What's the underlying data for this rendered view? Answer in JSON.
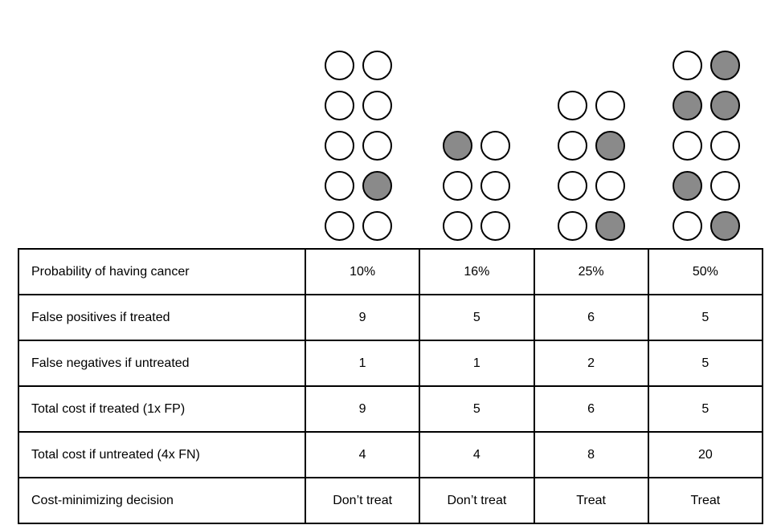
{
  "colors": {
    "background": "#ffffff",
    "dot_empty_fill": "#ffffff",
    "dot_filled_fill": "#8a8a8a",
    "dot_stroke": "#000000",
    "table_border": "#000000",
    "text": "#000000"
  },
  "pictograph": {
    "groups": [
      {
        "column": "10%",
        "total_circles": 10,
        "filled_circles": 1,
        "grid_rows": [
          [
            0,
            0
          ],
          [
            0,
            0
          ],
          [
            0,
            0
          ],
          [
            0,
            1
          ],
          [
            0,
            0
          ]
        ]
      },
      {
        "column": "16%",
        "total_circles": 6,
        "filled_circles": 1,
        "grid_rows": [
          [
            1,
            0
          ],
          [
            0,
            0
          ],
          [
            0,
            0
          ]
        ]
      },
      {
        "column": "25%",
        "total_circles": 8,
        "filled_circles": 2,
        "grid_rows": [
          [
            0,
            0
          ],
          [
            0,
            1
          ],
          [
            0,
            0
          ],
          [
            0,
            1
          ]
        ]
      },
      {
        "column": "50%",
        "total_circles": 10,
        "filled_circles": 5,
        "grid_rows": [
          [
            0,
            1
          ],
          [
            1,
            1
          ],
          [
            0,
            0
          ],
          [
            1,
            0
          ],
          [
            0,
            1
          ]
        ]
      }
    ]
  },
  "table": {
    "rows": [
      {
        "label": "Probability of having cancer",
        "values": [
          "10%",
          "16%",
          "25%",
          "50%"
        ]
      },
      {
        "label": "False positives if treated",
        "values": [
          "9",
          "5",
          "6",
          "5"
        ]
      },
      {
        "label": "False negatives if untreated",
        "values": [
          "1",
          "1",
          "2",
          "5"
        ]
      },
      {
        "label": "Total cost if treated (1x FP)",
        "values": [
          "9",
          "5",
          "6",
          "5"
        ]
      },
      {
        "label": "Total cost if untreated (4x FN)",
        "values": [
          "4",
          "4",
          "8",
          "20"
        ]
      },
      {
        "label": "Cost-minimizing decision",
        "values": [
          "Don’t treat",
          "Don’t treat",
          "Treat",
          "Treat"
        ]
      }
    ]
  },
  "chart_data": {
    "type": "table",
    "title": "",
    "columns": [
      "10%",
      "16%",
      "25%",
      "50%"
    ],
    "rows": [
      {
        "label": "Probability of having cancer",
        "values": [
          "10%",
          "16%",
          "25%",
          "50%"
        ]
      },
      {
        "label": "False positives if treated",
        "values": [
          9,
          5,
          6,
          5
        ]
      },
      {
        "label": "False negatives if untreated",
        "values": [
          1,
          1,
          2,
          5
        ]
      },
      {
        "label": "Total cost if treated (1x FP)",
        "values": [
          9,
          5,
          6,
          5
        ]
      },
      {
        "label": "Total cost if untreated (4x FN)",
        "values": [
          4,
          4,
          8,
          20
        ]
      },
      {
        "label": "Cost-minimizing decision",
        "values": [
          "Don’t treat",
          "Don’t treat",
          "Treat",
          "Treat"
        ]
      }
    ],
    "pictograph": {
      "layout": "four bottom-aligned 2-wide columns of circles, one above each data column; gray-filled circles mark cancer cases",
      "groups": [
        {
          "column": "10%",
          "total_circles": 10,
          "filled_circles": 1,
          "grid_rows": [
            [
              0,
              0
            ],
            [
              0,
              0
            ],
            [
              0,
              0
            ],
            [
              0,
              1
            ],
            [
              0,
              0
            ]
          ]
        },
        {
          "column": "16%",
          "total_circles": 6,
          "filled_circles": 1,
          "grid_rows": [
            [
              1,
              0
            ],
            [
              0,
              0
            ],
            [
              0,
              0
            ]
          ]
        },
        {
          "column": "25%",
          "total_circles": 8,
          "filled_circles": 2,
          "grid_rows": [
            [
              0,
              0
            ],
            [
              0,
              1
            ],
            [
              0,
              0
            ],
            [
              0,
              1
            ]
          ]
        },
        {
          "column": "50%",
          "total_circles": 10,
          "filled_circles": 5,
          "grid_rows": [
            [
              0,
              1
            ],
            [
              1,
              1
            ],
            [
              0,
              0
            ],
            [
              1,
              0
            ],
            [
              0,
              1
            ]
          ]
        }
      ]
    }
  }
}
